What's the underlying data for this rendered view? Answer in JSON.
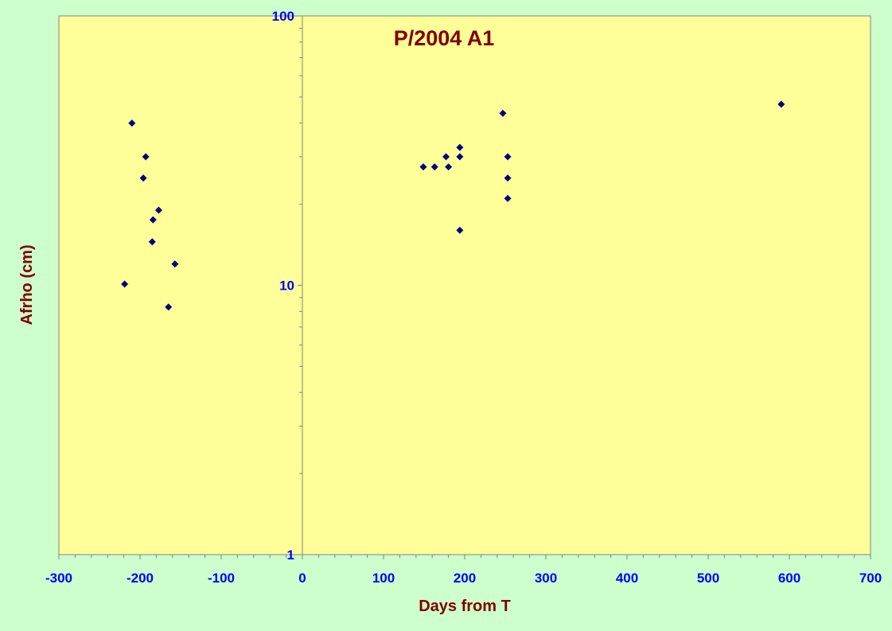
{
  "chart_data": {
    "type": "scatter",
    "title": "P/2004 A1",
    "xlabel": "Days from T",
    "ylabel": "Afrho (cm)",
    "xlim": [
      -300,
      700
    ],
    "ylim": [
      1,
      100
    ],
    "yscale": "log",
    "x_ticks": [
      -300,
      -200,
      -100,
      0,
      100,
      200,
      300,
      400,
      500,
      600,
      700
    ],
    "x_tick_labels": [
      "-300",
      "-200",
      "-100",
      "0",
      "100",
      "200",
      "300",
      "400",
      "500",
      "600",
      "700"
    ],
    "y_ticks": [
      1,
      10,
      100
    ],
    "y_tick_labels": [
      "1",
      "10",
      "100"
    ],
    "grid": false,
    "legend": "none",
    "series": [
      {
        "marker": "diamond",
        "color": "#000080",
        "x": [
          -210,
          -193,
          -196,
          -177,
          -184,
          -185,
          -157,
          -219,
          -165,
          149,
          163,
          177,
          180,
          194,
          194,
          194,
          247,
          253,
          253,
          253,
          590
        ],
        "y": [
          40,
          30,
          25,
          19,
          17.5,
          14.5,
          12,
          10.1,
          8.3,
          27.5,
          27.5,
          30,
          27.5,
          32.5,
          30,
          16,
          43.5,
          30,
          25,
          21,
          47
        ]
      }
    ]
  },
  "colors": {
    "background": "#ccffcc",
    "plot_area": "#ffff99",
    "axis_line": "#808080",
    "tick_label": "#0000ff",
    "title": "#800000",
    "marker": "#000080"
  }
}
